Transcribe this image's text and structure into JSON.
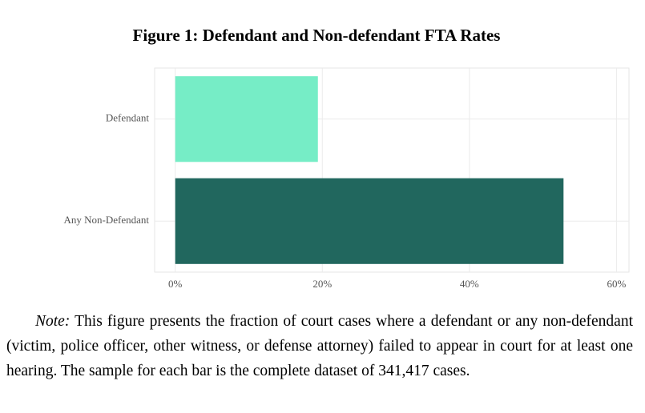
{
  "chart_data": {
    "type": "hbar",
    "title": "Figure 1: Defendant and Non-defendant FTA Rates",
    "categories": [
      "Defendant",
      "Any Non-Defendant"
    ],
    "series": [
      {
        "name": "FTA rate",
        "values": [
          19.4,
          52.8
        ]
      }
    ],
    "colors": [
      "#76edc6",
      "#21675e"
    ],
    "xlim": [
      -2.8,
      61.7
    ],
    "xticks": [
      {
        "value": 0,
        "label": "0%"
      },
      {
        "value": 20,
        "label": "20%"
      },
      {
        "value": 40,
        "label": "40%"
      },
      {
        "value": 60,
        "label": "60%"
      }
    ],
    "grid": true,
    "note_label": "Note:",
    "note": "This figure presents the fraction of court cases where a defendant or any non-defendant (victim, police officer, other witness, or defense attorney) failed to appear in court for at least one hearing. The sample for each bar is the complete dataset of 341,417 cases."
  }
}
